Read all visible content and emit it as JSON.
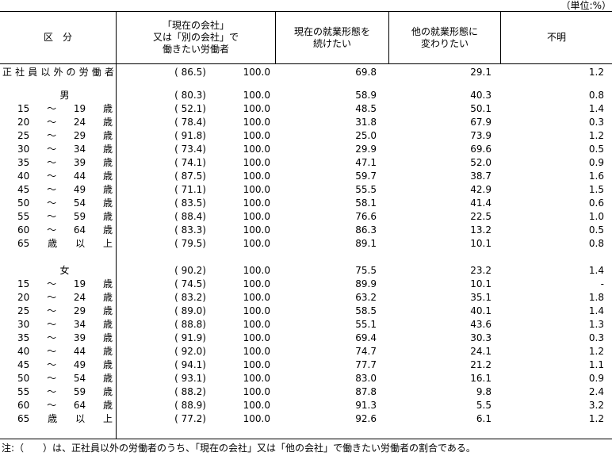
{
  "unit_label": "（単位:%）",
  "table": {
    "headers": {
      "category": "区　分",
      "seeking": [
        "「現在の会社」",
        "又は「別の会社」で",
        "働きたい労働者"
      ],
      "continue": [
        "現在の就業形態を",
        "続けたい"
      ],
      "change": [
        "他の就業形態に",
        "変わりたい"
      ],
      "unknown": "不明"
    },
    "rows": [
      {
        "type": "total",
        "label_tokens": [
          "正",
          "社",
          "員",
          "以",
          "外",
          "の",
          "労",
          "働",
          "者"
        ],
        "paren": "( 86.5)",
        "total": "100.0",
        "continue": "69.8",
        "change": "29.1",
        "unknown": "1.2"
      },
      {
        "type": "spacer",
        "height": 11
      },
      {
        "type": "section",
        "label_tokens": [
          "男"
        ],
        "paren": "( 80.3)",
        "total": "100.0",
        "continue": "58.9",
        "change": "40.3",
        "unknown": "0.8"
      },
      {
        "type": "age",
        "label_tokens": [
          "15",
          "～",
          "19",
          "歳"
        ],
        "paren": "( 52.1)",
        "total": "100.0",
        "continue": "48.5",
        "change": "50.1",
        "unknown": "1.4"
      },
      {
        "type": "age",
        "label_tokens": [
          "20",
          "～",
          "24",
          "歳"
        ],
        "paren": "( 78.4)",
        "total": "100.0",
        "continue": "31.8",
        "change": "67.9",
        "unknown": "0.3"
      },
      {
        "type": "age",
        "label_tokens": [
          "25",
          "～",
          "29",
          "歳"
        ],
        "paren": "( 91.8)",
        "total": "100.0",
        "continue": "25.0",
        "change": "73.9",
        "unknown": "1.2"
      },
      {
        "type": "age",
        "label_tokens": [
          "30",
          "～",
          "34",
          "歳"
        ],
        "paren": "( 73.4)",
        "total": "100.0",
        "continue": "29.9",
        "change": "69.6",
        "unknown": "0.5"
      },
      {
        "type": "age",
        "label_tokens": [
          "35",
          "～",
          "39",
          "歳"
        ],
        "paren": "( 74.1)",
        "total": "100.0",
        "continue": "47.1",
        "change": "52.0",
        "unknown": "0.9"
      },
      {
        "type": "age",
        "label_tokens": [
          "40",
          "～",
          "44",
          "歳"
        ],
        "paren": "( 87.5)",
        "total": "100.0",
        "continue": "59.7",
        "change": "38.7",
        "unknown": "1.6"
      },
      {
        "type": "age",
        "label_tokens": [
          "45",
          "～",
          "49",
          "歳"
        ],
        "paren": "( 71.1)",
        "total": "100.0",
        "continue": "55.5",
        "change": "42.9",
        "unknown": "1.5"
      },
      {
        "type": "age",
        "label_tokens": [
          "50",
          "～",
          "54",
          "歳"
        ],
        "paren": "( 83.5)",
        "total": "100.0",
        "continue": "58.1",
        "change": "41.4",
        "unknown": "0.6"
      },
      {
        "type": "age",
        "label_tokens": [
          "55",
          "～",
          "59",
          "歳"
        ],
        "paren": "( 88.4)",
        "total": "100.0",
        "continue": "76.6",
        "change": "22.5",
        "unknown": "1.0"
      },
      {
        "type": "age",
        "label_tokens": [
          "60",
          "～",
          "64",
          "歳"
        ],
        "paren": "( 83.3)",
        "total": "100.0",
        "continue": "86.3",
        "change": "13.2",
        "unknown": "0.5"
      },
      {
        "type": "age",
        "label_tokens": [
          "65",
          "歳",
          "以",
          "上"
        ],
        "paren": "( 79.5)",
        "total": "100.0",
        "continue": "89.1",
        "change": "10.1",
        "unknown": "0.8"
      },
      {
        "type": "spacer",
        "height": 17
      },
      {
        "type": "section",
        "label_tokens": [
          "女"
        ],
        "paren": "( 90.2)",
        "total": "100.0",
        "continue": "75.5",
        "change": "23.2",
        "unknown": "1.4"
      },
      {
        "type": "age",
        "label_tokens": [
          "15",
          "～",
          "19",
          "歳"
        ],
        "paren": "( 74.5)",
        "total": "100.0",
        "continue": "89.9",
        "change": "10.1",
        "unknown": "-"
      },
      {
        "type": "age",
        "label_tokens": [
          "20",
          "～",
          "24",
          "歳"
        ],
        "paren": "( 83.2)",
        "total": "100.0",
        "continue": "63.2",
        "change": "35.1",
        "unknown": "1.8"
      },
      {
        "type": "age",
        "label_tokens": [
          "25",
          "～",
          "29",
          "歳"
        ],
        "paren": "( 89.0)",
        "total": "100.0",
        "continue": "58.5",
        "change": "40.1",
        "unknown": "1.4"
      },
      {
        "type": "age",
        "label_tokens": [
          "30",
          "～",
          "34",
          "歳"
        ],
        "paren": "( 88.8)",
        "total": "100.0",
        "continue": "55.1",
        "change": "43.6",
        "unknown": "1.3"
      },
      {
        "type": "age",
        "label_tokens": [
          "35",
          "～",
          "39",
          "歳"
        ],
        "paren": "( 91.9)",
        "total": "100.0",
        "continue": "69.4",
        "change": "30.3",
        "unknown": "0.3"
      },
      {
        "type": "age",
        "label_tokens": [
          "40",
          "～",
          "44",
          "歳"
        ],
        "paren": "( 92.0)",
        "total": "100.0",
        "continue": "74.7",
        "change": "24.1",
        "unknown": "1.2"
      },
      {
        "type": "age",
        "label_tokens": [
          "45",
          "～",
          "49",
          "歳"
        ],
        "paren": "( 94.1)",
        "total": "100.0",
        "continue": "77.7",
        "change": "21.2",
        "unknown": "1.1"
      },
      {
        "type": "age",
        "label_tokens": [
          "50",
          "～",
          "54",
          "歳"
        ],
        "paren": "( 93.1)",
        "total": "100.0",
        "continue": "83.0",
        "change": "16.1",
        "unknown": "0.9"
      },
      {
        "type": "age",
        "label_tokens": [
          "55",
          "～",
          "59",
          "歳"
        ],
        "paren": "( 88.2)",
        "total": "100.0",
        "continue": "87.8",
        "change": "9.8",
        "unknown": "2.4"
      },
      {
        "type": "age",
        "label_tokens": [
          "60",
          "～",
          "64",
          "歳"
        ],
        "paren": "( 88.9)",
        "total": "100.0",
        "continue": "91.3",
        "change": "5.5",
        "unknown": "3.2"
      },
      {
        "type": "age",
        "label_tokens": [
          "65",
          "歳",
          "以",
          "上"
        ],
        "paren": "( 77.2)",
        "total": "100.0",
        "continue": "92.6",
        "change": "6.1",
        "unknown": "1.2"
      }
    ]
  },
  "note": "注:（　　）は、正社員以外の労働者のうち、「現在の会社」又は「他の会社」で働きたい労働者の割合である。"
}
